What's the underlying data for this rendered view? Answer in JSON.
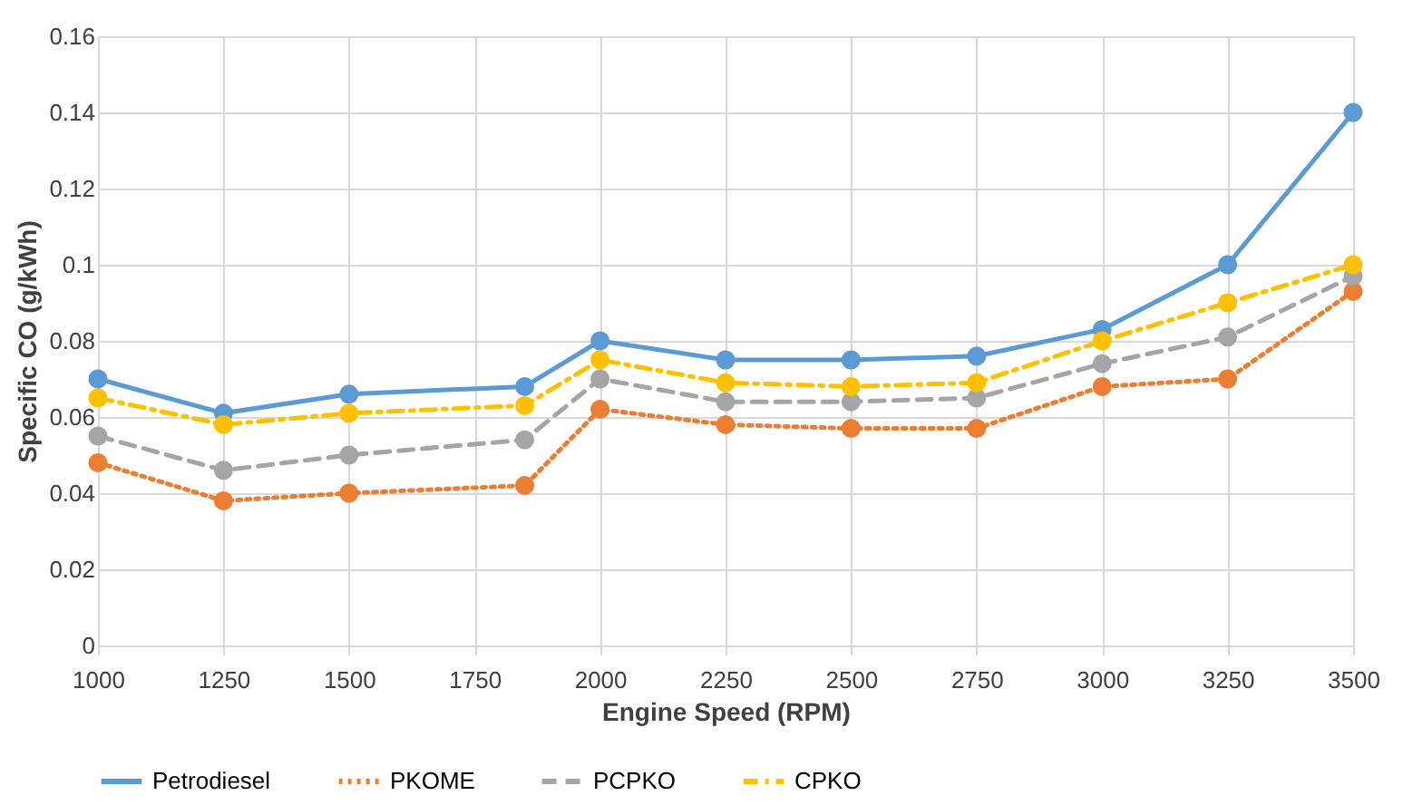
{
  "chart_data": {
    "type": "line",
    "xlabel": "Engine Speed (RPM)",
    "ylabel": "Specific CO (g/kWh)",
    "x": [
      1000,
      1250,
      1500,
      1850,
      2000,
      2250,
      2500,
      2750,
      3000,
      3250,
      3500
    ],
    "xlim": [
      1000,
      3500
    ],
    "xticks": [
      1000,
      1250,
      1500,
      1750,
      2000,
      2250,
      2500,
      2750,
      3000,
      3250,
      3500
    ],
    "ylim": [
      0,
      0.16
    ],
    "yticks": [
      0,
      0.02,
      0.04,
      0.06,
      0.08,
      0.1,
      0.12,
      0.14,
      0.16
    ],
    "grid": true,
    "legend": "bottom",
    "marker": "circle",
    "series": [
      {
        "name": "Petrodiesel",
        "color": "#5b9bd5",
        "line_style": "solid",
        "values": [
          0.07,
          0.061,
          0.066,
          0.068,
          0.08,
          0.075,
          0.075,
          0.076,
          0.083,
          0.1,
          0.14
        ]
      },
      {
        "name": "PKOME",
        "color": "#ed7d31",
        "line_style": "dotted",
        "values": [
          0.048,
          0.038,
          0.04,
          0.042,
          0.062,
          0.058,
          0.057,
          0.057,
          0.068,
          0.07,
          0.093
        ]
      },
      {
        "name": "PCPKO",
        "color": "#a5a5a5",
        "line_style": "dashed",
        "values": [
          0.055,
          0.046,
          0.05,
          0.054,
          0.07,
          0.064,
          0.064,
          0.065,
          0.074,
          0.081,
          0.097
        ]
      },
      {
        "name": "CPKO",
        "color": "#ffc000",
        "line_style": "dashdot",
        "values": [
          0.065,
          0.058,
          0.061,
          0.063,
          0.075,
          0.069,
          0.068,
          0.069,
          0.08,
          0.09,
          0.1
        ]
      }
    ]
  }
}
